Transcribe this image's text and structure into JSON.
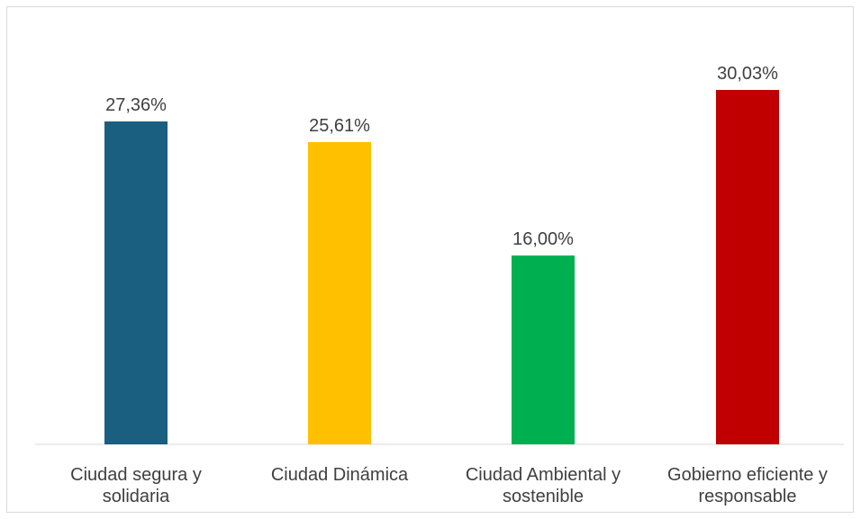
{
  "chart_data": {
    "type": "bar",
    "categories": [
      [
        "Ciudad segura y",
        "solidaria"
      ],
      [
        "Ciudad Dinámica"
      ],
      [
        "Ciudad Ambiental y",
        "sostenible"
      ],
      [
        "Gobierno eficiente y",
        "responsable"
      ]
    ],
    "values": [
      27.36,
      25.61,
      16.0,
      30.03
    ],
    "value_labels": [
      "27,36%",
      "25,61%",
      "16,00%",
      "30,03%"
    ],
    "bar_colors": [
      "#1a5e80",
      "#ffc000",
      "#00b050",
      "#c00000"
    ],
    "ylim": [
      0,
      30.03
    ],
    "grid": false,
    "legend": "none"
  }
}
